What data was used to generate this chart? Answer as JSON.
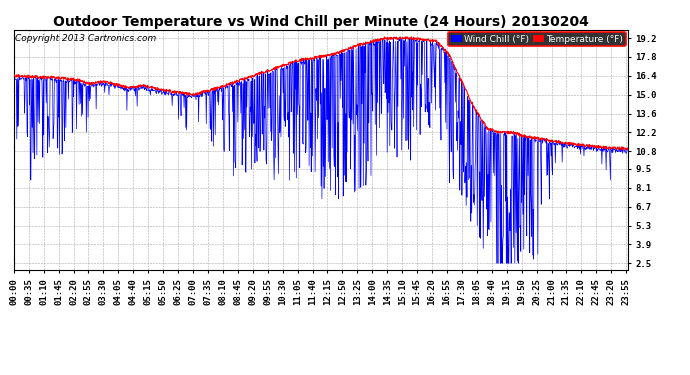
{
  "title": "Outdoor Temperature vs Wind Chill per Minute (24 Hours) 20130204",
  "copyright": "Copyright 2013 Cartronics.com",
  "yticks": [
    2.5,
    3.9,
    5.3,
    6.7,
    8.1,
    9.5,
    10.8,
    12.2,
    13.6,
    15.0,
    16.4,
    17.8,
    19.2
  ],
  "ylim": [
    2.0,
    19.8
  ],
  "temp_color": "#FF0000",
  "windchill_color": "#0000FF",
  "bg_color": "#FFFFFF",
  "grid_color": "#AAAAAA",
  "legend_windchill_label": "Wind Chill (°F)",
  "legend_temp_label": "Temperature (°F)",
  "title_fontsize": 10,
  "copyright_fontsize": 6.5,
  "tick_fontsize": 6.5
}
